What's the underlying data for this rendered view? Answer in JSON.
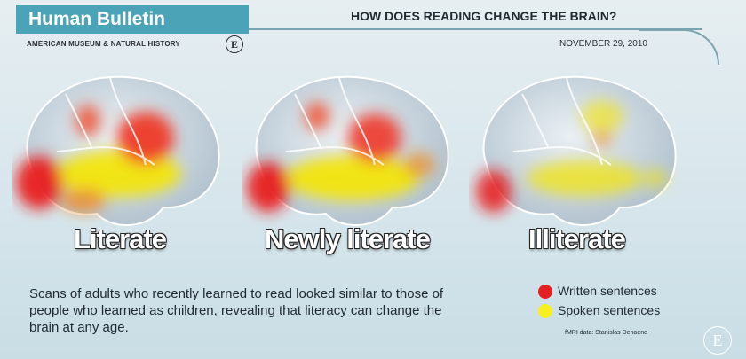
{
  "header": {
    "brand": "Human Bulletin",
    "question": "HOW DOES READING CHANGE THE BRAIN?",
    "museum": "AMERICAN MUSEUM & NATURAL HISTORY",
    "date": "NOVEMBER 29, 2010"
  },
  "brains": [
    {
      "label": "Literate"
    },
    {
      "label": "Newly literate"
    },
    {
      "label": "Illiterate"
    }
  ],
  "caption": "Scans of adults who recently learned to read looked similar to those of people who learned as children, revealing that literacy can change the brain at any age.",
  "legend": {
    "items": [
      {
        "label": "Written sentences",
        "color": "#e41f22"
      },
      {
        "label": "Spoken sentences",
        "color": "#f7ef1e"
      }
    ],
    "credit": "fMRI data: Stanislas Dehaene"
  },
  "colors": {
    "brand": "#4aa3b6",
    "brain": "#d8e3ea"
  }
}
